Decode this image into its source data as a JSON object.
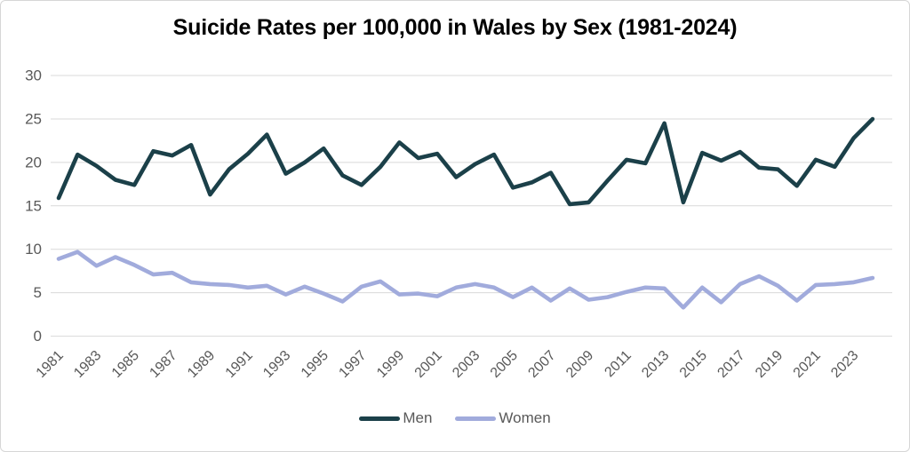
{
  "page": {
    "background": "#ffffff",
    "border_color": "#d6d6d6"
  },
  "chart_data": {
    "type": "line",
    "title": "Suicide Rates per 100,000 in Wales by Sex (1981-2024)",
    "xlabel": "",
    "ylabel": "",
    "x": [
      1981,
      1982,
      1983,
      1984,
      1985,
      1986,
      1987,
      1988,
      1989,
      1990,
      1991,
      1992,
      1993,
      1994,
      1995,
      1996,
      1997,
      1998,
      1999,
      2000,
      2001,
      2002,
      2003,
      2004,
      2005,
      2006,
      2007,
      2008,
      2009,
      2010,
      2011,
      2012,
      2013,
      2014,
      2015,
      2016,
      2017,
      2018,
      2019,
      2020,
      2021,
      2022,
      2023,
      2024
    ],
    "series": [
      {
        "name": "Men",
        "color": "#1b4049",
        "values": [
          15.9,
          20.9,
          19.6,
          18.0,
          17.4,
          21.3,
          20.8,
          22.0,
          16.3,
          19.2,
          21.0,
          23.2,
          18.7,
          20.0,
          21.6,
          18.5,
          17.4,
          19.5,
          22.3,
          20.5,
          21.0,
          18.3,
          19.8,
          20.9,
          17.1,
          17.7,
          18.8,
          15.2,
          15.4,
          17.9,
          20.3,
          19.9,
          24.5,
          15.4,
          21.1,
          20.2,
          21.2,
          19.4,
          19.2,
          17.3,
          20.3,
          19.5,
          22.8,
          25.0
        ]
      },
      {
        "name": "Women",
        "color": "#a1abdc",
        "values": [
          8.9,
          9.7,
          8.1,
          9.1,
          8.2,
          7.1,
          7.3,
          6.2,
          6.0,
          5.9,
          5.6,
          5.8,
          4.8,
          5.7,
          4.9,
          4.0,
          5.7,
          6.3,
          4.8,
          4.9,
          4.6,
          5.6,
          6.0,
          5.6,
          4.5,
          5.6,
          4.1,
          5.5,
          4.2,
          4.5,
          5.1,
          5.6,
          5.5,
          3.3,
          5.6,
          3.9,
          6.0,
          6.9,
          5.8,
          4.1,
          5.9,
          6.0,
          6.2,
          6.7
        ]
      }
    ],
    "ylim": [
      0,
      30
    ],
    "y_ticks": [
      0,
      5,
      10,
      15,
      20,
      25,
      30
    ],
    "x_tick_labels": [
      "1981",
      "1983",
      "1985",
      "1987",
      "1989",
      "1991",
      "1993",
      "1995",
      "1997",
      "1999",
      "2001",
      "2003",
      "2005",
      "2007",
      "2009",
      "2011",
      "2013",
      "2015",
      "2017",
      "2019",
      "2021",
      "2023"
    ],
    "grid": "horizontal",
    "legend_position": "bottom-center",
    "colors": {
      "grid": "#d9d9d9",
      "tick_text": "#595959",
      "title_text": "#000000"
    }
  }
}
